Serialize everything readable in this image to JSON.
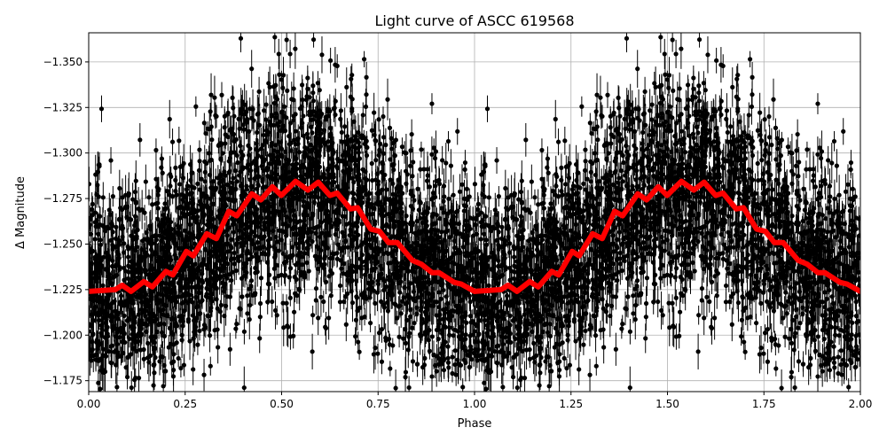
{
  "chart_data": {
    "type": "scatter",
    "title": "Light curve of ASCC 619568",
    "xlabel": "Phase",
    "ylabel": "Δ Magnitude",
    "xlim": [
      0,
      2
    ],
    "ylim": [
      -1.169,
      -1.366
    ],
    "y_inverted": true,
    "grid": true,
    "x_ticks": [
      "0.00",
      "0.25",
      "0.50",
      "0.75",
      "1.00",
      "1.25",
      "1.50",
      "1.75",
      "2.00"
    ],
    "y_ticks": [
      "−1.175",
      "−1.200",
      "−1.225",
      "−1.250",
      "−1.275",
      "−1.300",
      "−1.325",
      "−1.350"
    ],
    "series": [
      {
        "kind": "observations with error bars",
        "color": "#000000",
        "marker": "circle"
      },
      {
        "kind": "binned mean curve",
        "color": "#ff0000",
        "phase_period_repeated": true,
        "x": [
          0.0,
          0.069,
          0.087,
          0.11,
          0.143,
          0.165,
          0.2,
          0.218,
          0.253,
          0.271,
          0.306,
          0.331,
          0.363,
          0.384,
          0.423,
          0.446,
          0.476,
          0.499,
          0.536,
          0.568,
          0.595,
          0.625,
          0.644,
          0.678,
          0.697,
          0.731,
          0.754,
          0.777,
          0.8,
          0.839,
          0.862,
          0.89,
          0.908,
          0.947,
          0.966,
          1.0
        ],
        "y": [
          -1.224,
          -1.225,
          -1.2274,
          -1.224,
          -1.2294,
          -1.2265,
          -1.235,
          -1.233,
          -1.246,
          -1.2435,
          -1.2557,
          -1.253,
          -1.268,
          -1.2655,
          -1.2776,
          -1.2742,
          -1.2815,
          -1.2767,
          -1.2845,
          -1.2796,
          -1.284,
          -1.2767,
          -1.278,
          -1.2693,
          -1.27,
          -1.2582,
          -1.257,
          -1.2508,
          -1.2508,
          -1.241,
          -1.239,
          -1.2343,
          -1.2343,
          -1.229,
          -1.228,
          -1.224
        ]
      }
    ]
  }
}
